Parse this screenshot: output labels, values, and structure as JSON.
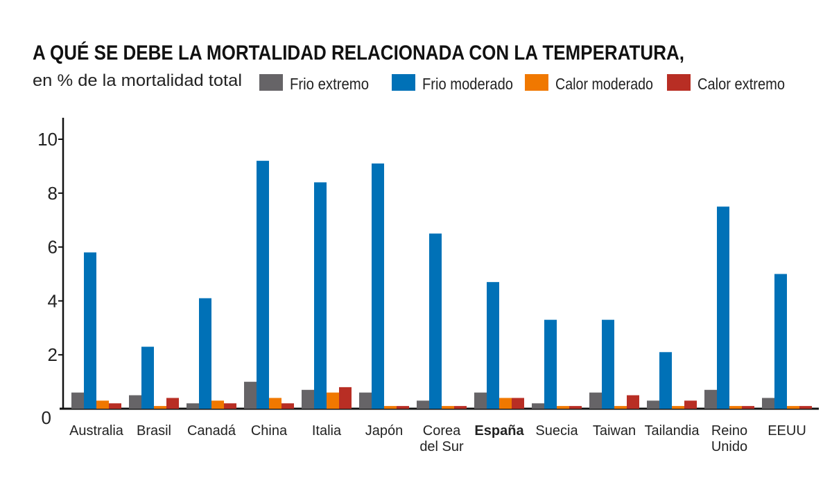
{
  "chart_data": {
    "type": "bar",
    "title": "A QUÉ SE DEBE LA MORTALIDAD RELACIONADA CON LA TEMPERATURA,",
    "subtitle": "en % de la mortalidad total",
    "xlabel": "",
    "ylabel": "",
    "ylim": [
      0,
      10.8
    ],
    "yticks": [
      "0",
      "2",
      "4",
      "6",
      "8",
      "10"
    ],
    "grid": false,
    "legend_position": "top",
    "categories": [
      [
        "Australia"
      ],
      [
        "Brasil"
      ],
      [
        "Canadá"
      ],
      [
        "China"
      ],
      [
        "Italia"
      ],
      [
        "Japón"
      ],
      [
        "Corea",
        "del Sur"
      ],
      [
        "España"
      ],
      [
        "Suecia"
      ],
      [
        "Taiwan"
      ],
      [
        "Tailandia"
      ],
      [
        "Reino",
        "Unido"
      ],
      [
        "EEUU"
      ]
    ],
    "highlighted_category": "España",
    "series": [
      {
        "name": "Frio extremo",
        "color": "#666467",
        "values": [
          0.6,
          0.5,
          0.2,
          1.0,
          0.7,
          0.6,
          0.3,
          0.6,
          0.2,
          0.6,
          0.3,
          0.7,
          0.4
        ]
      },
      {
        "name": "Frio moderado",
        "color": "#0071b7",
        "values": [
          5.8,
          2.3,
          4.1,
          9.2,
          8.4,
          9.1,
          6.5,
          4.7,
          3.3,
          3.3,
          2.1,
          7.5,
          5.0
        ]
      },
      {
        "name": "Calor moderado",
        "color": "#f07800",
        "values": [
          0.3,
          0.1,
          0.3,
          0.4,
          0.6,
          0.1,
          0.1,
          0.4,
          0.1,
          0.1,
          0.1,
          0.1,
          0.1
        ]
      },
      {
        "name": "Calor extremo",
        "color": "#b82e24",
        "values": [
          0.2,
          0.4,
          0.2,
          0.2,
          0.8,
          0.1,
          0.1,
          0.4,
          0.1,
          0.5,
          0.3,
          0.1,
          0.1
        ]
      }
    ]
  }
}
